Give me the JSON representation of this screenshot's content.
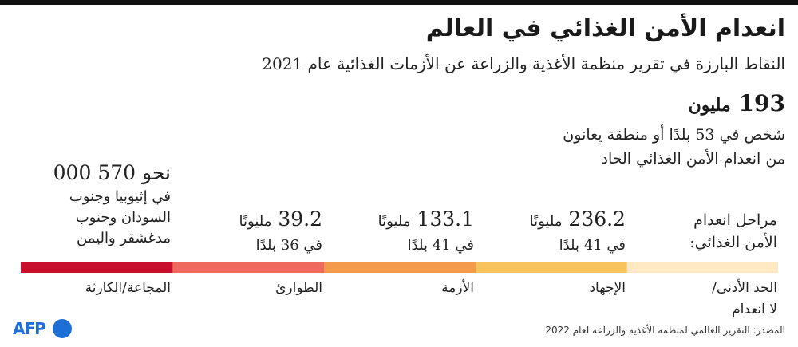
{
  "title": "انعدام الأمن الغذائي في العالم",
  "subtitle": "النقاط البارزة في تقرير منظمة الأغذية والزراعة عن الأزمات الغذائية عام 2021",
  "headline": {
    "number": "193",
    "unit": "مليون",
    "line1": "شخص في 53 بلدًا أو منطقة يعانون",
    "line2": "من انعدام الأمن الغذائي الحاد"
  },
  "phases_heading": {
    "line1": "مراحل انعدام",
    "line2": "الأمن الغذائي:"
  },
  "chart_data": {
    "type": "table",
    "categories": [
      {
        "line1": "الحد الأدنى/",
        "line2": "لا انعدام",
        "color": "#fde9c4"
      },
      {
        "line1": "الإجهاد",
        "line2": "",
        "color": "#f8c35d"
      },
      {
        "line1": "الأزمة",
        "line2": "",
        "color": "#f39a4d"
      },
      {
        "line1": "الطوارئ",
        "line2": "",
        "color": "#ee6a5c"
      },
      {
        "line1": "المجاعة/الكارثة",
        "line2": "",
        "color": "#c8102e"
      }
    ],
    "values": [
      null,
      {
        "value": "236.2",
        "unit": "مليونًا",
        "countries": "في 41 بلدًا"
      },
      {
        "value": "133.1",
        "unit": "مليونًا",
        "countries": "في 41 بلدًا"
      },
      {
        "value": "39.2",
        "unit": "مليونًا",
        "countries": "في 36 بلدًا"
      },
      {
        "value": "570 000",
        "prefix": "نحو",
        "line1": "في إثيوبيا وجنوب",
        "line2": "السودان وجنوب",
        "line3": "مدغشقر واليمن"
      }
    ]
  },
  "source": "المصدر: التقرير العالمي لمنظمة الأغذية والزراعة لعام 2022",
  "logo": "AFP"
}
